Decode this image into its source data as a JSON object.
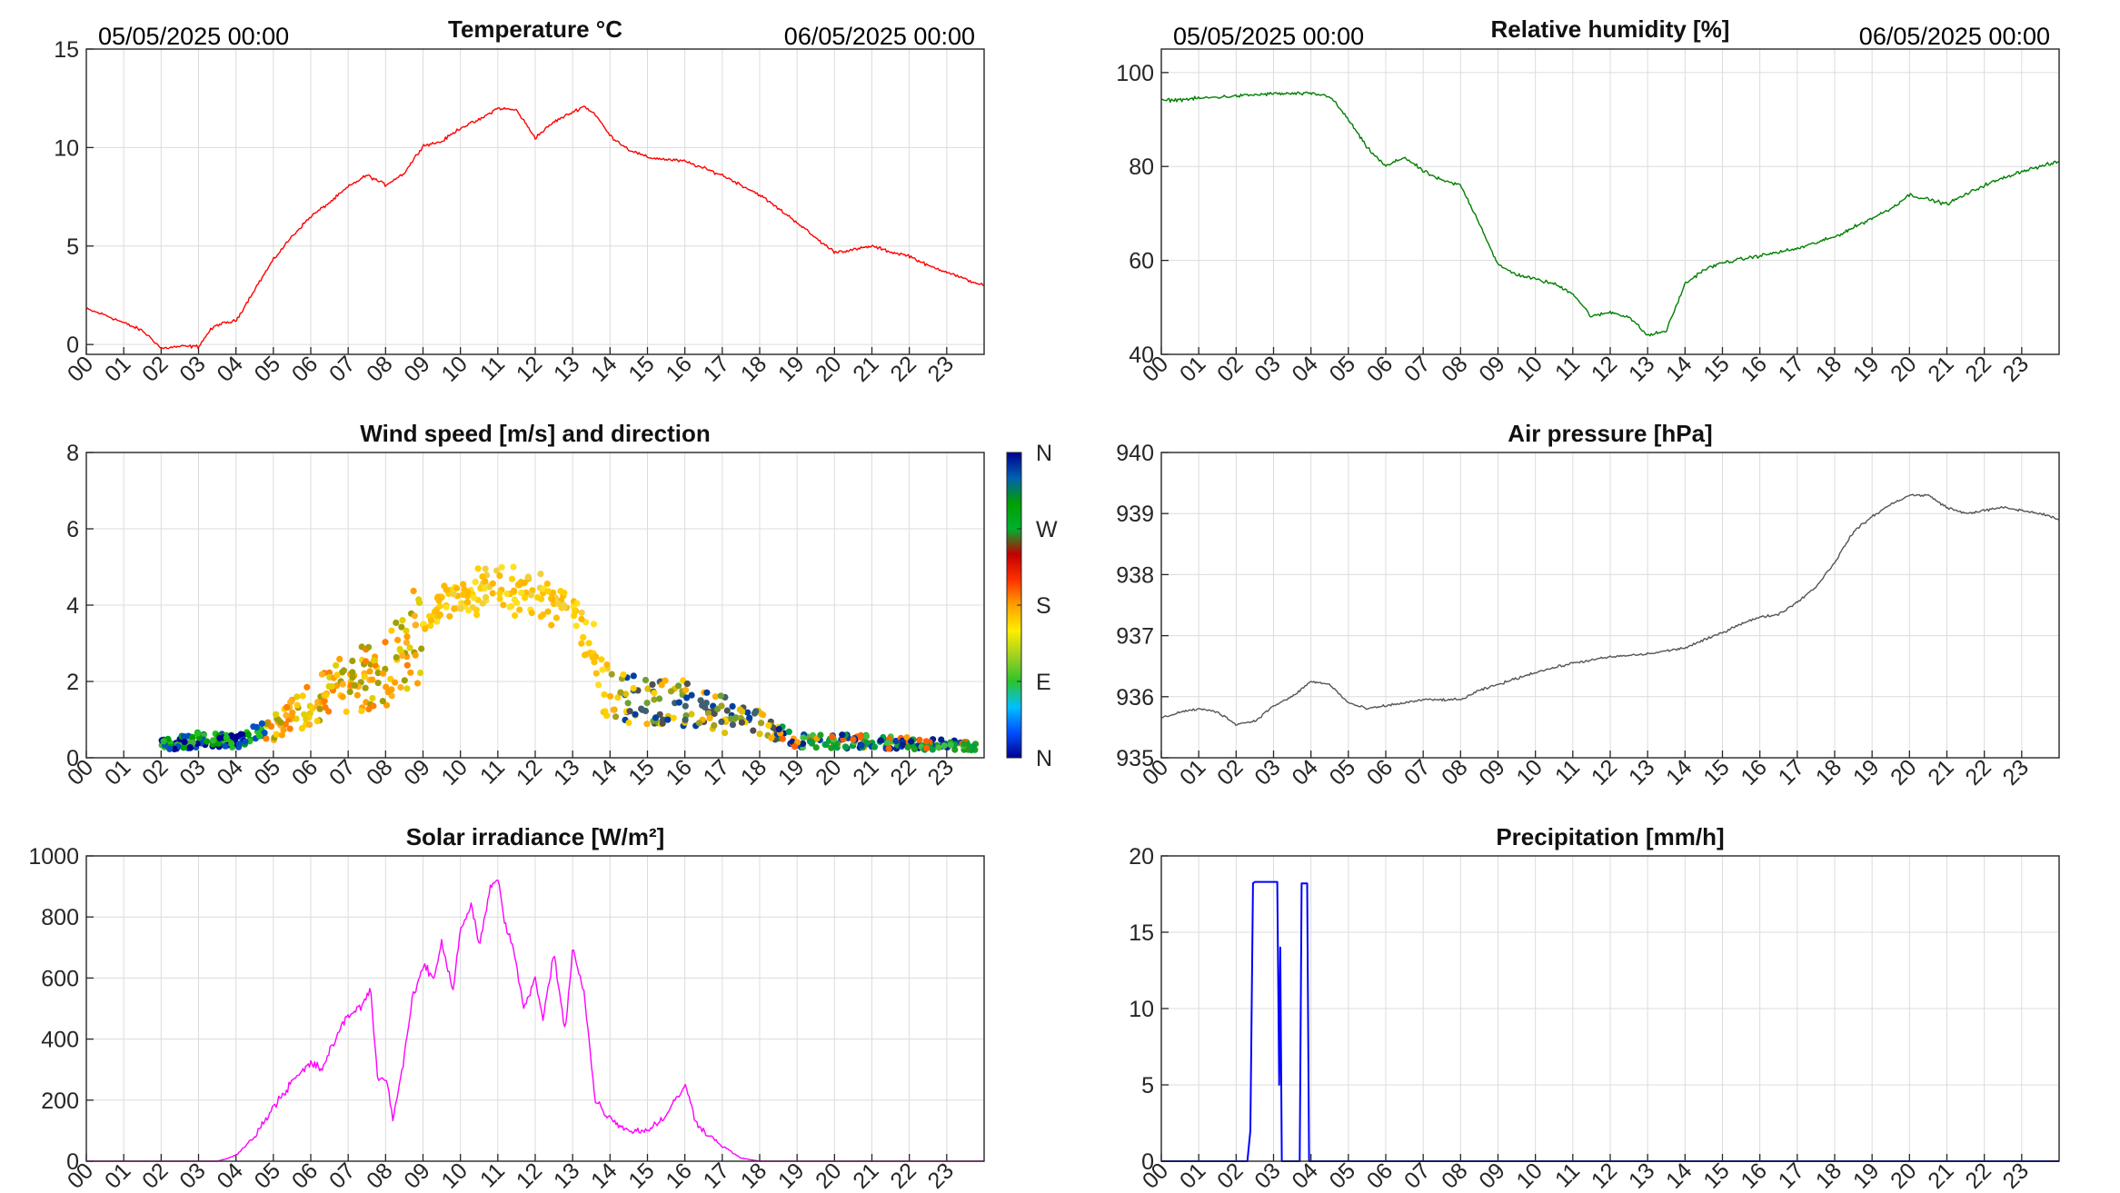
{
  "hour_labels": [
    "00",
    "01",
    "02",
    "03",
    "04",
    "05",
    "06",
    "07",
    "08",
    "09",
    "10",
    "11",
    "12",
    "13",
    "14",
    "15",
    "16",
    "17",
    "18",
    "19",
    "20",
    "21",
    "22",
    "23"
  ],
  "colors": {
    "grid": "#dcdcdc",
    "axis": "#262626",
    "temperature": "#ff0000",
    "humidity": "#007f00",
    "pressure": "#555555",
    "solar": "#ff00ff",
    "precip": "#0000ff"
  },
  "chart_data": [
    {
      "id": "temperature",
      "type": "line",
      "title": "Temperature °C",
      "date_start": "05/05/2025 00:00",
      "date_end": "06/05/2025 00:00",
      "xlim": [
        0,
        24
      ],
      "ylim": [
        -0.5,
        15
      ],
      "yticks": [
        0,
        5,
        10,
        15
      ],
      "series": [
        {
          "color": "#ff0000",
          "x": [
            0,
            0.5,
            1,
            1.5,
            1.8,
            2,
            2.5,
            3,
            3.3,
            3.5,
            4,
            4.5,
            5,
            5.5,
            6,
            6.5,
            7,
            7.5,
            8,
            8.5,
            9,
            9.5,
            10,
            10.5,
            11,
            11.5,
            12,
            12.5,
            13,
            13.3,
            13.6,
            14,
            14.5,
            15,
            15.5,
            16,
            17,
            18,
            19,
            19.5,
            20,
            20.5,
            21,
            21.5,
            22,
            22.5,
            23,
            23.5,
            24
          ],
          "y": [
            1.8,
            1.5,
            1.1,
            0.7,
            0.2,
            -0.2,
            -0.1,
            -0.1,
            0.7,
            1.0,
            1.2,
            2.8,
            4.3,
            5.5,
            6.5,
            7.2,
            8.0,
            8.6,
            8.1,
            8.7,
            10.1,
            10.3,
            11.0,
            11.4,
            12.0,
            11.9,
            10.5,
            11.3,
            11.8,
            12.1,
            11.7,
            10.6,
            9.9,
            9.5,
            9.4,
            9.3,
            8.6,
            7.6,
            6.2,
            5.4,
            4.7,
            4.8,
            5.0,
            4.7,
            4.5,
            4.0,
            3.7,
            3.3,
            3.0
          ]
        }
      ]
    },
    {
      "id": "humidity",
      "type": "line",
      "title": "Relative humidity [%]",
      "date_start": "05/05/2025 00:00",
      "date_end": "06/05/2025 00:00",
      "xlim": [
        0,
        24
      ],
      "ylim": [
        40,
        105
      ],
      "yticks": [
        40,
        60,
        80,
        100
      ],
      "series": [
        {
          "color": "#007f00",
          "x": [
            0,
            1,
            2,
            3,
            4,
            4.5,
            5,
            5.5,
            6,
            6.5,
            7,
            7.5,
            8,
            8.5,
            9,
            9.5,
            10,
            10.5,
            11,
            11.5,
            12,
            12.5,
            13,
            13.5,
            14,
            14.5,
            15,
            16,
            17,
            18,
            19,
            19.5,
            20,
            20.5,
            21,
            21.5,
            22,
            23,
            24
          ],
          "y": [
            94,
            94.5,
            95,
            95.5,
            95.5,
            95,
            90,
            84,
            80,
            82,
            79,
            77,
            76,
            68,
            59,
            57,
            56,
            55,
            53,
            48,
            49,
            48,
            44,
            45,
            55,
            58,
            59.5,
            61,
            62.5,
            65,
            69,
            71,
            74,
            73,
            72,
            74,
            76,
            79,
            81
          ]
        }
      ]
    },
    {
      "id": "wind",
      "type": "scatter",
      "title": "Wind speed [m/s] and direction",
      "xlim": [
        0,
        24
      ],
      "ylim": [
        0,
        8
      ],
      "yticks": [
        0,
        2,
        4,
        6,
        8
      ],
      "colorbar": {
        "labels": [
          "N",
          "E",
          "S",
          "W",
          "N"
        ],
        "colors": [
          "#000090",
          "#0050ff",
          "#00c0ff",
          "#2ec22e",
          "#a0d020",
          "#ffee00",
          "#ffa000",
          "#ff3000",
          "#c00000",
          "#00b030",
          "#00a000",
          "#0060b0",
          "#000090"
        ]
      }
    },
    {
      "id": "pressure",
      "type": "line",
      "title": "Air pressure [hPa]",
      "xlim": [
        0,
        24
      ],
      "ylim": [
        935,
        940
      ],
      "yticks": [
        935,
        936,
        937,
        938,
        939,
        940
      ],
      "series": [
        {
          "color": "#555555",
          "x": [
            0,
            0.5,
            1,
            1.5,
            2,
            2.5,
            3,
            3.5,
            4,
            4.5,
            5,
            5.5,
            6,
            6.5,
            7,
            7.5,
            8,
            8.5,
            9,
            10,
            11,
            12,
            13,
            14,
            15,
            15.5,
            16,
            16.5,
            17,
            17.5,
            18,
            18.5,
            19,
            19.5,
            20,
            20.5,
            21,
            21.5,
            22,
            22.5,
            23,
            23.5,
            24
          ],
          "y": [
            935.65,
            935.75,
            935.8,
            935.75,
            935.55,
            935.6,
            935.85,
            936.0,
            936.25,
            936.2,
            935.9,
            935.8,
            935.85,
            935.9,
            935.95,
            935.95,
            935.95,
            936.1,
            936.2,
            936.4,
            936.55,
            936.65,
            936.7,
            936.8,
            937.05,
            937.2,
            937.3,
            937.35,
            937.55,
            937.8,
            938.2,
            938.7,
            938.95,
            939.15,
            939.3,
            939.3,
            939.1,
            939.0,
            939.05,
            939.1,
            939.05,
            939.0,
            938.9
          ]
        }
      ]
    },
    {
      "id": "solar",
      "type": "line",
      "title": "Solar irradiance [W/m²]",
      "xlim": [
        0,
        24
      ],
      "ylim": [
        0,
        1000
      ],
      "yticks": [
        0,
        200,
        400,
        600,
        800,
        1000
      ],
      "series": [
        {
          "color": "#ff00ff",
          "x": [
            0,
            3.5,
            3.8,
            4,
            4.5,
            5,
            5.5,
            6,
            6.3,
            6.5,
            7,
            7.3,
            7.6,
            7.8,
            8,
            8.2,
            8.5,
            8.7,
            9,
            9.3,
            9.5,
            9.8,
            10,
            10.3,
            10.5,
            10.8,
            11,
            11.2,
            11.4,
            11.7,
            12,
            12.2,
            12.5,
            12.8,
            13,
            13.3,
            13.6,
            14,
            14.5,
            15,
            15.5,
            16,
            16.3,
            16.5,
            17,
            17.5,
            18,
            24
          ],
          "y": [
            0,
            0,
            10,
            20,
            80,
            180,
            260,
            320,
            300,
            360,
            480,
            500,
            560,
            260,
            280,
            140,
            340,
            520,
            640,
            600,
            720,
            560,
            760,
            840,
            700,
            900,
            920,
            780,
            700,
            500,
            600,
            460,
            680,
            420,
            700,
            560,
            200,
            140,
            100,
            100,
            150,
            250,
            130,
            100,
            50,
            10,
            0,
            0
          ]
        }
      ]
    },
    {
      "id": "precip",
      "type": "line",
      "title": "Precipitation [mm/h]",
      "xlim": [
        0,
        24
      ],
      "ylim": [
        0,
        20
      ],
      "yticks": [
        0,
        5,
        10,
        15,
        20
      ],
      "series": [
        {
          "color": "#0000ff",
          "x": [
            0,
            2.3,
            2.38,
            2.45,
            2.5,
            3.1,
            3.15,
            3.18,
            3.22,
            3.7,
            3.75,
            3.9,
            3.95,
            4.1,
            24
          ],
          "y": [
            0,
            0,
            2,
            18.2,
            18.3,
            18.3,
            5,
            14,
            0,
            0,
            18.2,
            18.2,
            0,
            0,
            0
          ]
        }
      ]
    }
  ]
}
